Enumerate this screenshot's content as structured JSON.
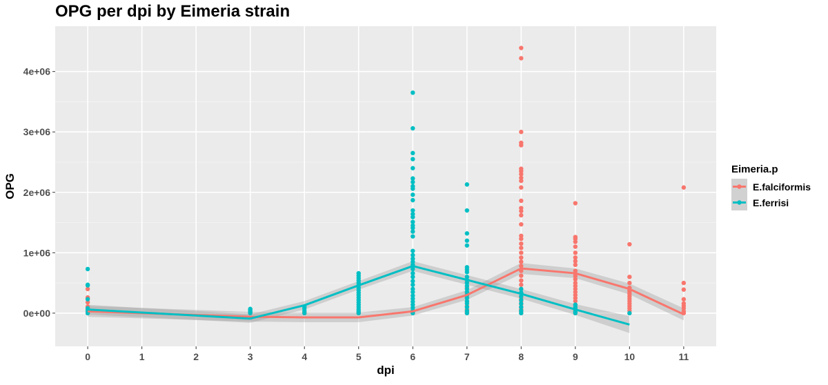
{
  "chart_data": {
    "type": "scatter",
    "title": "OPG per dpi by Eimeria strain",
    "xlabel": "dpi",
    "ylabel": "OPG",
    "xlim": [
      -0.6,
      11.6
    ],
    "ylim": [
      -550000,
      4750000
    ],
    "x_ticks": [
      0,
      1,
      2,
      3,
      4,
      5,
      6,
      7,
      8,
      9,
      10,
      11
    ],
    "y_ticks": [
      0,
      1000000,
      2000000,
      3000000,
      4000000
    ],
    "y_tick_labels": [
      "0e+00",
      "1e+06",
      "2e+06",
      "3e+06",
      "4e+06"
    ],
    "grid": true,
    "legend": {
      "title": "Eimeria.p",
      "position": "right"
    },
    "colors": {
      "panel": "#ebebeb",
      "grid_major": "#ffffff",
      "grid_minor": "#f5f5f5",
      "ribbon": "#999999"
    },
    "series": [
      {
        "name": "E.falciformis",
        "color": "#F8766D",
        "points": [
          [
            0,
            0
          ],
          [
            0,
            20000
          ],
          [
            0,
            50000
          ],
          [
            0,
            80000
          ],
          [
            0,
            110000
          ],
          [
            0,
            180000
          ],
          [
            0,
            240000
          ],
          [
            0,
            260000
          ],
          [
            0,
            400000
          ],
          [
            3,
            0
          ],
          [
            3,
            10000
          ],
          [
            3,
            20000
          ],
          [
            4,
            0
          ],
          [
            4,
            15000
          ],
          [
            5,
            0
          ],
          [
            5,
            10000
          ],
          [
            6,
            0
          ],
          [
            6,
            15000
          ],
          [
            6,
            40000
          ],
          [
            7,
            0
          ],
          [
            7,
            20000
          ],
          [
            7,
            60000
          ],
          [
            7,
            120000
          ],
          [
            7,
            190000
          ],
          [
            7,
            260000
          ],
          [
            7,
            330000
          ],
          [
            7,
            420000
          ],
          [
            7,
            520000
          ],
          [
            8,
            0
          ],
          [
            8,
            30000
          ],
          [
            8,
            60000
          ],
          [
            8,
            100000
          ],
          [
            8,
            150000
          ],
          [
            8,
            200000
          ],
          [
            8,
            260000
          ],
          [
            8,
            330000
          ],
          [
            8,
            400000
          ],
          [
            8,
            470000
          ],
          [
            8,
            540000
          ],
          [
            8,
            620000
          ],
          [
            8,
            700000
          ],
          [
            8,
            780000
          ],
          [
            8,
            850000
          ],
          [
            8,
            920000
          ],
          [
            8,
            1000000
          ],
          [
            8,
            1080000
          ],
          [
            8,
            1150000
          ],
          [
            8,
            1230000
          ],
          [
            8,
            1280000
          ],
          [
            8,
            1470000
          ],
          [
            8,
            1620000
          ],
          [
            8,
            1690000
          ],
          [
            8,
            1740000
          ],
          [
            8,
            1860000
          ],
          [
            8,
            2080000
          ],
          [
            8,
            2190000
          ],
          [
            8,
            2240000
          ],
          [
            8,
            2300000
          ],
          [
            8,
            2350000
          ],
          [
            8,
            2390000
          ],
          [
            8,
            2780000
          ],
          [
            8,
            2820000
          ],
          [
            8,
            3000000
          ],
          [
            8,
            4220000
          ],
          [
            8,
            4390000
          ],
          [
            9,
            0
          ],
          [
            9,
            40000
          ],
          [
            9,
            90000
          ],
          [
            9,
            140000
          ],
          [
            9,
            200000
          ],
          [
            9,
            250000
          ],
          [
            9,
            300000
          ],
          [
            9,
            350000
          ],
          [
            9,
            400000
          ],
          [
            9,
            450000
          ],
          [
            9,
            500000
          ],
          [
            9,
            560000
          ],
          [
            9,
            610000
          ],
          [
            9,
            650000
          ],
          [
            9,
            700000
          ],
          [
            9,
            800000
          ],
          [
            9,
            860000
          ],
          [
            9,
            920000
          ],
          [
            9,
            1000000
          ],
          [
            9,
            1100000
          ],
          [
            9,
            1180000
          ],
          [
            9,
            1230000
          ],
          [
            9,
            1260000
          ],
          [
            9,
            1820000
          ],
          [
            10,
            0
          ],
          [
            10,
            40000
          ],
          [
            10,
            80000
          ],
          [
            10,
            120000
          ],
          [
            10,
            160000
          ],
          [
            10,
            200000
          ],
          [
            10,
            240000
          ],
          [
            10,
            280000
          ],
          [
            10,
            320000
          ],
          [
            10,
            350000
          ],
          [
            10,
            380000
          ],
          [
            10,
            420000
          ],
          [
            10,
            500000
          ],
          [
            10,
            600000
          ],
          [
            10,
            1140000
          ],
          [
            11,
            0
          ],
          [
            11,
            30000
          ],
          [
            11,
            80000
          ],
          [
            11,
            120000
          ],
          [
            11,
            160000
          ],
          [
            11,
            230000
          ],
          [
            11,
            390000
          ],
          [
            11,
            500000
          ],
          [
            11,
            2080000
          ]
        ],
        "line": [
          [
            0,
            30000
          ],
          [
            3,
            -60000
          ],
          [
            4,
            -70000
          ],
          [
            5,
            -70000
          ],
          [
            6,
            30000
          ],
          [
            7,
            300000
          ],
          [
            8,
            740000
          ],
          [
            9,
            660000
          ],
          [
            10,
            400000
          ],
          [
            11,
            -20000
          ]
        ],
        "band": [
          [
            0,
            -60000,
            120000
          ],
          [
            3,
            -140000,
            20000
          ],
          [
            4,
            -150000,
            10000
          ],
          [
            5,
            -150000,
            10000
          ],
          [
            6,
            -40000,
            100000
          ],
          [
            7,
            220000,
            380000
          ],
          [
            8,
            650000,
            830000
          ],
          [
            9,
            580000,
            740000
          ],
          [
            10,
            310000,
            490000
          ],
          [
            11,
            -120000,
            80000
          ]
        ]
      },
      {
        "name": "E.ferrisi",
        "color": "#00BFC4",
        "points": [
          [
            0,
            0
          ],
          [
            0,
            40000
          ],
          [
            0,
            80000
          ],
          [
            0,
            230000
          ],
          [
            0,
            460000
          ],
          [
            0,
            470000
          ],
          [
            0,
            730000
          ],
          [
            3,
            0
          ],
          [
            3,
            20000
          ],
          [
            3,
            40000
          ],
          [
            3,
            60000
          ],
          [
            3,
            70000
          ],
          [
            4,
            0
          ],
          [
            4,
            40000
          ],
          [
            4,
            80000
          ],
          [
            4,
            110000
          ],
          [
            5,
            0
          ],
          [
            5,
            30000
          ],
          [
            5,
            60000
          ],
          [
            5,
            100000
          ],
          [
            5,
            140000
          ],
          [
            5,
            180000
          ],
          [
            5,
            220000
          ],
          [
            5,
            260000
          ],
          [
            5,
            300000
          ],
          [
            5,
            340000
          ],
          [
            5,
            380000
          ],
          [
            5,
            420000
          ],
          [
            5,
            460000
          ],
          [
            5,
            500000
          ],
          [
            5,
            540000
          ],
          [
            5,
            580000
          ],
          [
            5,
            620000
          ],
          [
            5,
            660000
          ],
          [
            6,
            0
          ],
          [
            6,
            40000
          ],
          [
            6,
            90000
          ],
          [
            6,
            140000
          ],
          [
            6,
            190000
          ],
          [
            6,
            240000
          ],
          [
            6,
            290000
          ],
          [
            6,
            350000
          ],
          [
            6,
            400000
          ],
          [
            6,
            470000
          ],
          [
            6,
            530000
          ],
          [
            6,
            600000
          ],
          [
            6,
            660000
          ],
          [
            6,
            730000
          ],
          [
            6,
            800000
          ],
          [
            6,
            850000
          ],
          [
            6,
            900000
          ],
          [
            6,
            960000
          ],
          [
            6,
            1030000
          ],
          [
            6,
            1270000
          ],
          [
            6,
            1350000
          ],
          [
            6,
            1410000
          ],
          [
            6,
            1450000
          ],
          [
            6,
            1510000
          ],
          [
            6,
            1590000
          ],
          [
            6,
            1640000
          ],
          [
            6,
            1700000
          ],
          [
            6,
            1870000
          ],
          [
            6,
            1960000
          ],
          [
            6,
            2060000
          ],
          [
            6,
            2100000
          ],
          [
            6,
            2170000
          ],
          [
            6,
            2230000
          ],
          [
            6,
            2400000
          ],
          [
            6,
            2550000
          ],
          [
            6,
            2650000
          ],
          [
            6,
            3060000
          ],
          [
            6,
            3650000
          ],
          [
            7,
            0
          ],
          [
            7,
            40000
          ],
          [
            7,
            100000
          ],
          [
            7,
            160000
          ],
          [
            7,
            200000
          ],
          [
            7,
            250000
          ],
          [
            7,
            300000
          ],
          [
            7,
            350000
          ],
          [
            7,
            400000
          ],
          [
            7,
            450000
          ],
          [
            7,
            500000
          ],
          [
            7,
            550000
          ],
          [
            7,
            600000
          ],
          [
            7,
            680000
          ],
          [
            7,
            720000
          ],
          [
            7,
            760000
          ],
          [
            7,
            1120000
          ],
          [
            7,
            1200000
          ],
          [
            7,
            1320000
          ],
          [
            7,
            1700000
          ],
          [
            7,
            2130000
          ],
          [
            8,
            0
          ],
          [
            8,
            40000
          ],
          [
            8,
            100000
          ],
          [
            8,
            160000
          ],
          [
            8,
            220000
          ],
          [
            8,
            280000
          ],
          [
            8,
            340000
          ],
          [
            8,
            400000
          ],
          [
            9,
            0
          ],
          [
            9,
            20000
          ],
          [
            9,
            60000
          ],
          [
            9,
            100000
          ],
          [
            9,
            140000
          ],
          [
            10,
            0
          ]
        ],
        "line": [
          [
            0,
            60000
          ],
          [
            3,
            -90000
          ],
          [
            4,
            130000
          ],
          [
            5,
            460000
          ],
          [
            6,
            780000
          ],
          [
            7,
            550000
          ],
          [
            8,
            320000
          ],
          [
            9,
            60000
          ],
          [
            10,
            -190000
          ]
        ],
        "band": [
          [
            0,
            -20000,
            140000
          ],
          [
            3,
            -160000,
            -20000
          ],
          [
            4,
            60000,
            200000
          ],
          [
            5,
            390000,
            530000
          ],
          [
            6,
            700000,
            860000
          ],
          [
            7,
            470000,
            630000
          ],
          [
            8,
            240000,
            400000
          ],
          [
            9,
            -30000,
            150000
          ],
          [
            10,
            -330000,
            -50000
          ]
        ]
      }
    ]
  }
}
